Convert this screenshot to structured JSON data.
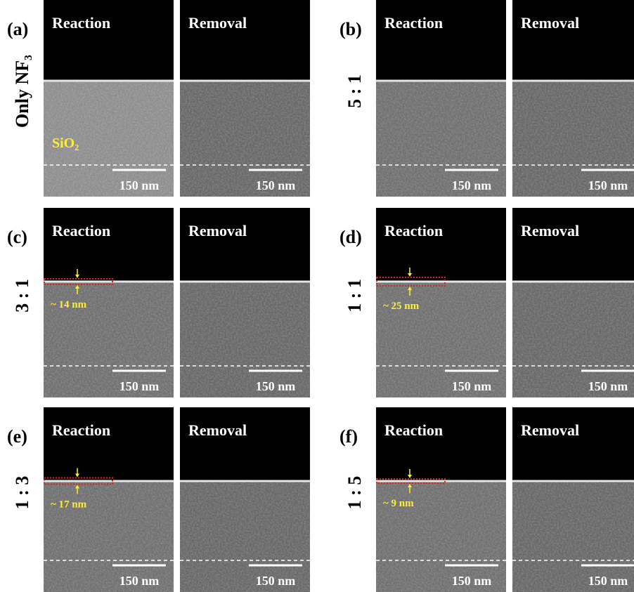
{
  "panels": [
    {
      "label": "(a)",
      "condition": "Only NF₃",
      "material": "SiO₂",
      "images": [
        {
          "title": "Reaction",
          "scale_bar": "150 nm"
        },
        {
          "title": "Removal",
          "scale_bar": "150 nm"
        }
      ]
    },
    {
      "label": "(b)",
      "condition": "5 : 1",
      "images": [
        {
          "title": "Reaction",
          "scale_bar": "150 nm"
        },
        {
          "title": "Removal",
          "scale_bar": "150 nm"
        }
      ]
    },
    {
      "label": "(c)",
      "condition": "3 : 1",
      "thickness": "~ 14 nm",
      "images": [
        {
          "title": "Reaction",
          "scale_bar": "150 nm"
        },
        {
          "title": "Removal",
          "scale_bar": "150 nm"
        }
      ]
    },
    {
      "label": "(d)",
      "condition": "1 : 1",
      "thickness": "~ 25 nm",
      "images": [
        {
          "title": "Reaction",
          "scale_bar": "150 nm"
        },
        {
          "title": "Removal",
          "scale_bar": "150 nm"
        }
      ]
    },
    {
      "label": "(e)",
      "condition": "1 : 3",
      "thickness": "~ 17 nm",
      "images": [
        {
          "title": "Reaction",
          "scale_bar": "150 nm"
        },
        {
          "title": "Removal",
          "scale_bar": "150 nm"
        }
      ]
    },
    {
      "label": "(f)",
      "condition": "1 : 5",
      "thickness": "~ 9 nm",
      "images": [
        {
          "title": "Reaction",
          "scale_bar": "150 nm"
        },
        {
          "title": "Removal",
          "scale_bar": "150 nm"
        }
      ]
    }
  ]
}
